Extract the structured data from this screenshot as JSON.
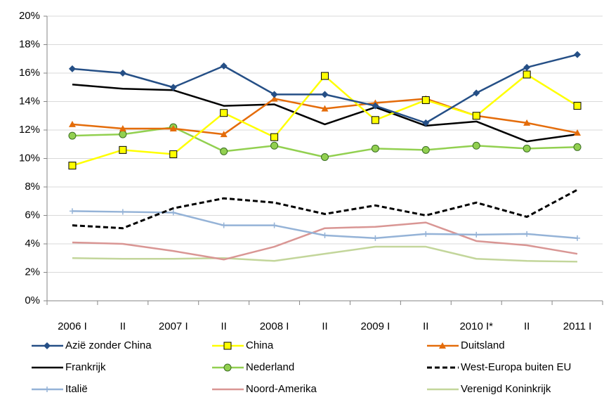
{
  "chart_data": {
    "type": "line",
    "categories": [
      "2006 I",
      "II",
      "2007 I",
      "II",
      "2008 I",
      "II",
      "2009 I",
      "II",
      "2010 I*",
      "II",
      "2011 I"
    ],
    "ylim": [
      0,
      20
    ],
    "yticks": [
      {
        "value": 0,
        "label": "0%"
      },
      {
        "value": 2,
        "label": "2%"
      },
      {
        "value": 4,
        "label": "4%"
      },
      {
        "value": 6,
        "label": "6%"
      },
      {
        "value": 8,
        "label": "8%"
      },
      {
        "value": 10,
        "label": "10%"
      },
      {
        "value": 12,
        "label": "12%"
      },
      {
        "value": 14,
        "label": "14%"
      },
      {
        "value": 16,
        "label": "16%"
      },
      {
        "value": 18,
        "label": "18%"
      },
      {
        "value": 20,
        "label": "20%"
      }
    ],
    "grid": true,
    "series": [
      {
        "name": "Azië zonder China",
        "color": "#254f86",
        "marker": "diamond",
        "values": [
          16.3,
          16.0,
          15.0,
          16.5,
          14.5,
          14.5,
          13.7,
          12.5,
          14.6,
          16.4,
          17.3
        ]
      },
      {
        "name": "China",
        "color": "#ffff00",
        "marker": "square",
        "values": [
          9.5,
          10.6,
          10.3,
          13.2,
          11.5,
          15.8,
          12.7,
          14.1,
          13.0,
          15.9,
          13.7
        ]
      },
      {
        "name": "Duitsland",
        "color": "#e46c0a",
        "marker": "triangle",
        "values": [
          12.4,
          12.1,
          12.1,
          11.7,
          14.2,
          13.5,
          13.9,
          14.2,
          13.0,
          12.5,
          11.8
        ]
      },
      {
        "name": "Frankrijk",
        "color": "#000000",
        "marker": "none",
        "values": [
          15.2,
          14.9,
          14.8,
          13.7,
          13.8,
          12.4,
          13.6,
          12.3,
          12.6,
          11.2,
          11.7
        ]
      },
      {
        "name": "Nederland",
        "color": "#92d050",
        "marker": "circle",
        "values": [
          11.6,
          11.7,
          12.2,
          10.5,
          10.9,
          10.1,
          10.7,
          10.6,
          10.9,
          10.7,
          10.8
        ]
      },
      {
        "name": "West-Europa buiten EU",
        "color": "#000000",
        "marker": "none",
        "dash": true,
        "values": [
          5.3,
          5.1,
          6.5,
          7.2,
          6.9,
          6.1,
          6.7,
          6.0,
          6.9,
          5.9,
          7.8
        ]
      },
      {
        "name": "Italië",
        "color": "#95b3d7",
        "marker": "plus",
        "values": [
          6.3,
          6.25,
          6.2,
          5.3,
          5.3,
          4.6,
          4.4,
          4.7,
          4.65,
          4.7,
          4.4
        ]
      },
      {
        "name": "Noord-Amerika",
        "color": "#d99694",
        "marker": "none",
        "values": [
          4.1,
          4.0,
          3.5,
          2.9,
          3.8,
          5.1,
          5.2,
          5.5,
          4.2,
          3.9,
          3.3
        ]
      },
      {
        "name": "Verenigd Koninkrijk",
        "color": "#c3d69b",
        "marker": "none",
        "values": [
          3.0,
          2.95,
          2.95,
          3.0,
          2.8,
          3.3,
          3.8,
          3.8,
          2.95,
          2.8,
          2.75
        ]
      }
    ]
  }
}
